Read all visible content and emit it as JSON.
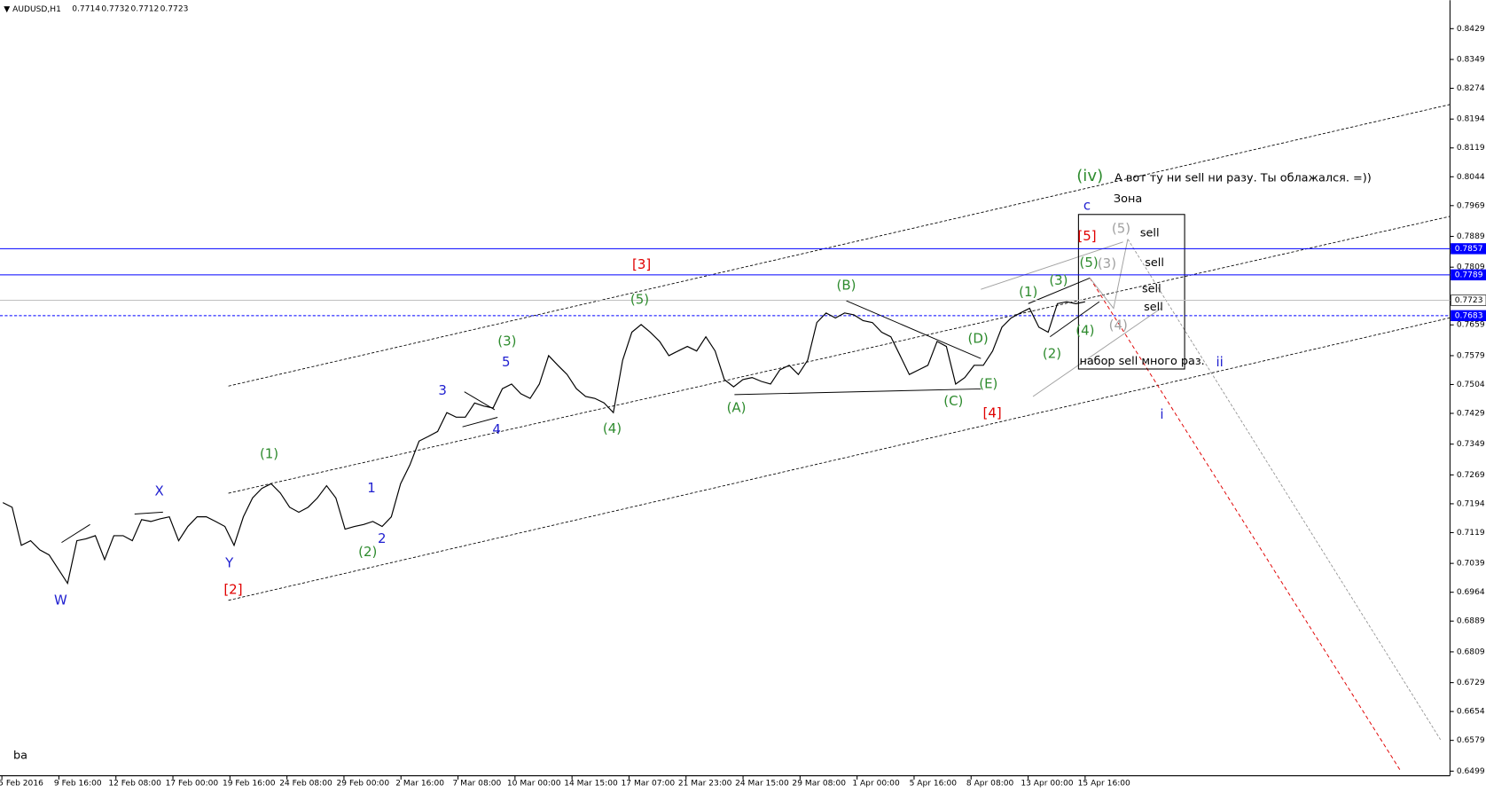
{
  "chart_data": {
    "type": "line",
    "title": "AUDUSD,H1",
    "ohlc": [
      0.7714,
      0.7732,
      0.7712,
      0.7723
    ],
    "ylim": [
      0.6487,
      0.8503
    ],
    "yticks": [
      0.8429,
      0.8349,
      0.8274,
      0.8194,
      0.8119,
      0.8044,
      0.7969,
      0.7889,
      0.7809,
      0.7659,
      0.7579,
      0.7504,
      0.7429,
      0.7349,
      0.7269,
      0.7194,
      0.7119,
      0.7039,
      0.6964,
      0.6889,
      0.6809,
      0.6729,
      0.6654,
      0.6579,
      0.6499
    ],
    "x_labels": [
      "5 Feb 2016",
      "9 Feb 16:00",
      "12 Feb 08:00",
      "17 Feb 00:00",
      "19 Feb 16:00",
      "24 Feb 08:00",
      "29 Feb 00:00",
      "2 Mar 16:00",
      "7 Mar 08:00",
      "10 Mar 00:00",
      "14 Mar 15:00",
      "17 Mar 07:00",
      "21 Mar 23:00",
      "24 Mar 15:00",
      "29 Mar 08:00",
      "1 Apr 00:00",
      "5 Apr 16:00",
      "8 Apr 08:00",
      "13 Apr 00:00",
      "15 Apr 16:00"
    ],
    "series": [
      {
        "color": "#000000",
        "values": [
          0.7197,
          0.7185,
          0.7086,
          0.7098,
          0.7074,
          0.7061,
          0.7024,
          0.6987,
          0.7098,
          0.7103,
          0.7111,
          0.7049,
          0.7111,
          0.7111,
          0.7098,
          0.7153,
          0.7148,
          0.7155,
          0.716,
          0.7098,
          0.7135,
          0.716,
          0.716,
          0.7148,
          0.7135,
          0.7086,
          0.716,
          0.7209,
          0.7234,
          0.7246,
          0.7222,
          0.7185,
          0.7172,
          0.7185,
          0.7209,
          0.7241,
          0.7209,
          0.7128,
          0.7135,
          0.714,
          0.7148,
          0.7135,
          0.716,
          0.7246,
          0.7295,
          0.7357,
          0.7369,
          0.7382,
          0.7431,
          0.7419,
          0.7419,
          0.7456,
          0.7448,
          0.7443,
          0.7493,
          0.7505,
          0.748,
          0.7468,
          0.7505,
          0.7579,
          0.7554,
          0.753,
          0.7493,
          0.7473,
          0.7468,
          0.7456,
          0.7431,
          0.7567,
          0.764,
          0.766,
          0.764,
          0.7616,
          0.7579,
          0.7591,
          0.7603,
          0.7591,
          0.7628,
          0.7591,
          0.7517,
          0.7498,
          0.7517,
          0.7522,
          0.7512,
          0.7505,
          0.7542,
          0.7554,
          0.753,
          0.7567,
          0.7665,
          0.769,
          0.7677,
          0.769,
          0.7685,
          0.767,
          0.7665,
          0.764,
          0.7628,
          0.7579,
          0.753,
          0.7542,
          0.7554,
          0.7616,
          0.7603,
          0.7505,
          0.7522,
          0.7554,
          0.7554,
          0.7591,
          0.7653,
          0.7677,
          0.769,
          0.7702,
          0.7653,
          0.764,
          0.7714,
          0.7719,
          0.7714,
          0.7719
        ]
      }
    ],
    "price_lines": [
      {
        "value": 0.7857,
        "color": "#0000ff",
        "style": "solid"
      },
      {
        "value": 0.7789,
        "color": "#0000ff",
        "style": "solid"
      },
      {
        "value": 0.7723,
        "color": "#c0c0c0",
        "style": "solid"
      },
      {
        "value": 0.7683,
        "color": "#0000ff",
        "style": "dashed"
      }
    ],
    "annotations": [
      {
        "text": "(1)",
        "color": "#2e8b2e"
      },
      {
        "text": "(2)",
        "color": "#2e8b2e"
      },
      {
        "text": "(3)",
        "color": "#2e8b2e"
      },
      {
        "text": "(4)",
        "color": "#2e8b2e"
      },
      {
        "text": "(5)",
        "color": "#2e8b2e"
      },
      {
        "text": "(A)",
        "color": "#2e8b2e"
      },
      {
        "text": "(B)",
        "color": "#2e8b2e"
      },
      {
        "text": "(C)",
        "color": "#2e8b2e"
      },
      {
        "text": "(D)",
        "color": "#2e8b2e"
      },
      {
        "text": "(E)",
        "color": "#2e8b2e"
      },
      {
        "text": "(1)",
        "color": "#2e8b2e"
      },
      {
        "text": "(2)",
        "color": "#2e8b2e"
      },
      {
        "text": "(3)",
        "color": "#2e8b2e"
      },
      {
        "text": "(4)",
        "color": "#2e8b2e"
      },
      {
        "text": "(5)",
        "color": "#2e8b2e"
      },
      {
        "text": "(iv)",
        "color": "#2e8b2e"
      },
      {
        "text": "W",
        "color": "#2020d0"
      },
      {
        "text": "X",
        "color": "#2020d0"
      },
      {
        "text": "Y",
        "color": "#2020d0"
      },
      {
        "text": "1",
        "color": "#2020d0"
      },
      {
        "text": "2",
        "color": "#2020d0"
      },
      {
        "text": "3",
        "color": "#2020d0"
      },
      {
        "text": "4",
        "color": "#2020d0"
      },
      {
        "text": "5",
        "color": "#2020d0"
      },
      {
        "text": "c",
        "color": "#2020d0"
      },
      {
        "text": "ii",
        "color": "#2020d0"
      },
      {
        "text": "i",
        "color": "#2020d0"
      },
      {
        "text": "[2]",
        "color": "#e00000"
      },
      {
        "text": "[3]",
        "color": "#e00000"
      },
      {
        "text": "[4]",
        "color": "#e00000"
      },
      {
        "text": "[5]",
        "color": "#e00000"
      },
      {
        "text": "(5)",
        "color": "#a0a0a0"
      },
      {
        "text": "(3)",
        "color": "#a0a0a0"
      },
      {
        "text": "(4)",
        "color": "#a0a0a0"
      },
      {
        "text": "А вот ту ни sell ни разу. Ты облажался. =))",
        "color": "#000000"
      },
      {
        "text": "Зона",
        "color": "#000000"
      },
      {
        "text": "sell",
        "color": "#000000"
      },
      {
        "text": "sell",
        "color": "#000000"
      },
      {
        "text": "sell",
        "color": "#000000"
      },
      {
        "text": "sell",
        "color": "#000000"
      },
      {
        "text": "набор sell много раз.",
        "color": "#000000"
      },
      {
        "text": "ba",
        "color": "#000000"
      }
    ]
  }
}
